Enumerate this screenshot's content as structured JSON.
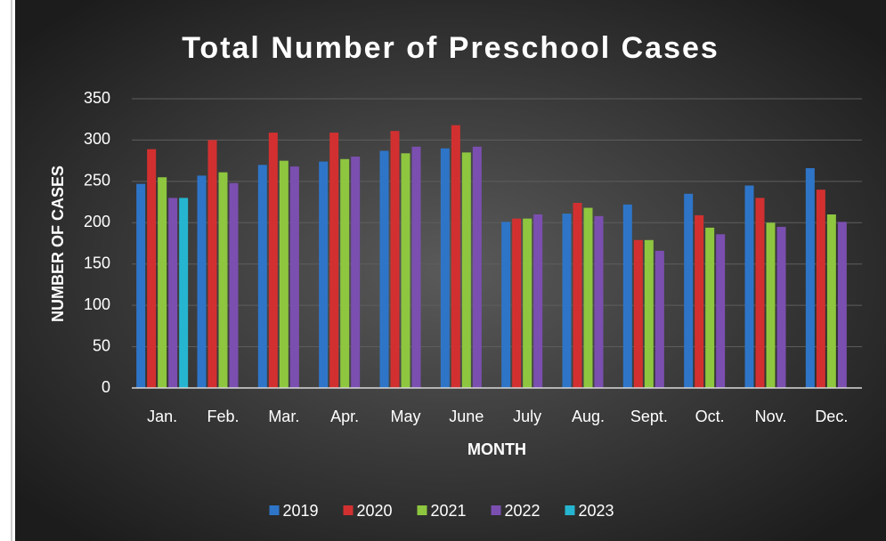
{
  "chart_data": {
    "type": "bar",
    "title": "Total Number of Preschool Cases",
    "x_label": "MONTH",
    "y_label": "NUMBER OF CASES",
    "categories": [
      "Jan.",
      "Feb.",
      "Mar.",
      "Apr.",
      "May",
      "June",
      "July",
      "Aug.",
      "Sept.",
      "Oct.",
      "Nov.",
      "Dec."
    ],
    "series": [
      {
        "name": "2019",
        "color": "#2e75c8",
        "values": [
          247,
          257,
          270,
          274,
          287,
          290,
          201,
          211,
          222,
          235,
          245,
          266
        ]
      },
      {
        "name": "2020",
        "color": "#d23030",
        "values": [
          289,
          300,
          309,
          309,
          311,
          318,
          205,
          224,
          179,
          209,
          230,
          240
        ]
      },
      {
        "name": "2021",
        "color": "#8ec63f",
        "values": [
          255,
          261,
          275,
          277,
          284,
          285,
          205,
          218,
          179,
          194,
          200,
          210
        ]
      },
      {
        "name": "2022",
        "color": "#7b4fb0",
        "values": [
          230,
          248,
          268,
          280,
          292,
          292,
          210,
          208,
          166,
          186,
          195,
          201
        ]
      },
      {
        "name": "2023",
        "color": "#26b5d0",
        "values": [
          230,
          null,
          null,
          null,
          null,
          null,
          null,
          null,
          null,
          null,
          null,
          null
        ]
      }
    ],
    "ylim": [
      0,
      350
    ],
    "yticks": [
      0,
      50,
      100,
      150,
      200,
      250,
      300,
      350
    ],
    "grid": true,
    "legend": "bottom"
  }
}
